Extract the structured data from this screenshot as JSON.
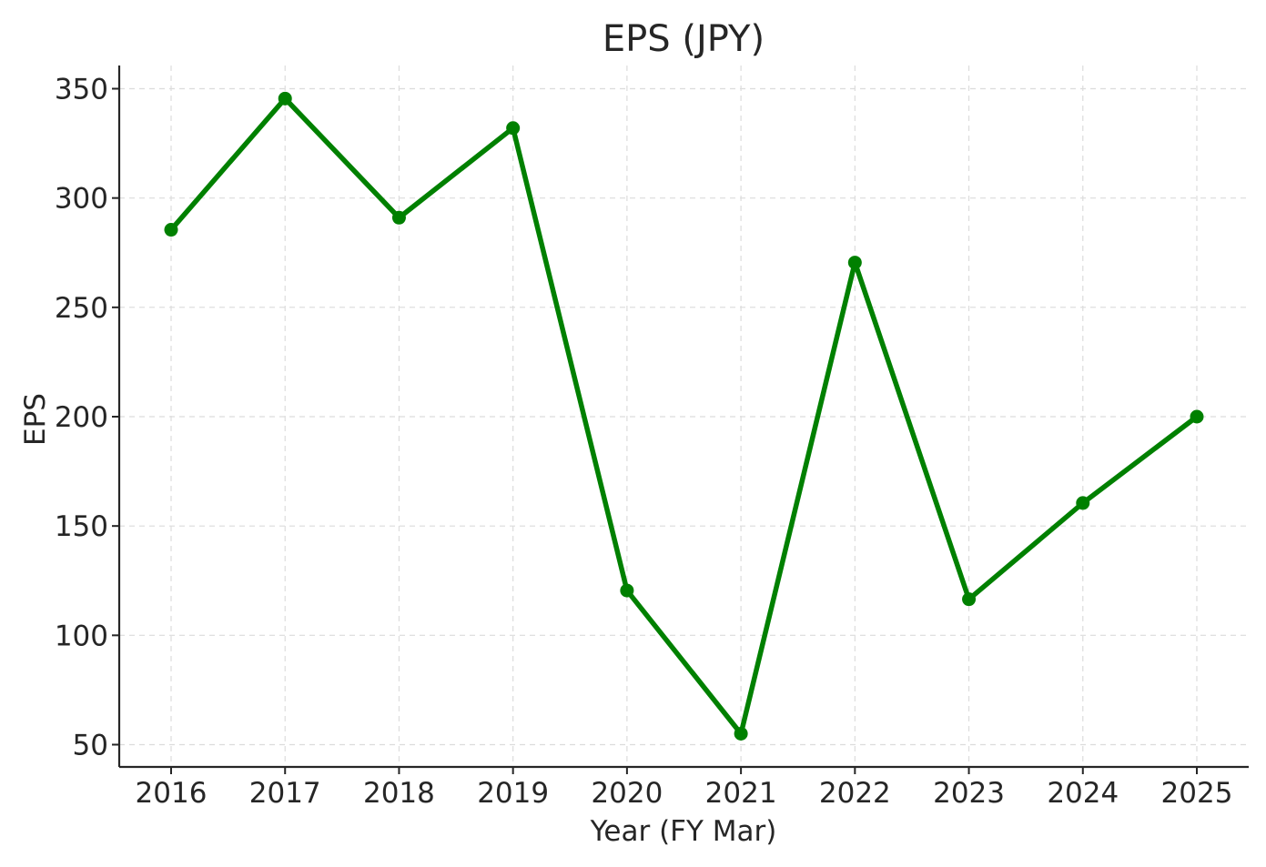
{
  "chart_data": {
    "type": "line",
    "title": "EPS (JPY)",
    "xlabel": "Year (FY Mar)",
    "ylabel": "EPS",
    "x": [
      "2016",
      "2017",
      "2018",
      "2019",
      "2020",
      "2021",
      "2022",
      "2023",
      "2024",
      "2025"
    ],
    "series": [
      {
        "values": [
          285.5,
          345.5,
          291,
          332,
          120.5,
          55,
          270.5,
          116.5,
          160.5,
          200
        ],
        "color": "#008000"
      }
    ],
    "yticks": [
      50,
      100,
      150,
      200,
      250,
      300,
      350
    ],
    "ylim": [
      40,
      361
    ],
    "grid": true,
    "legend": "none",
    "markers": true
  }
}
